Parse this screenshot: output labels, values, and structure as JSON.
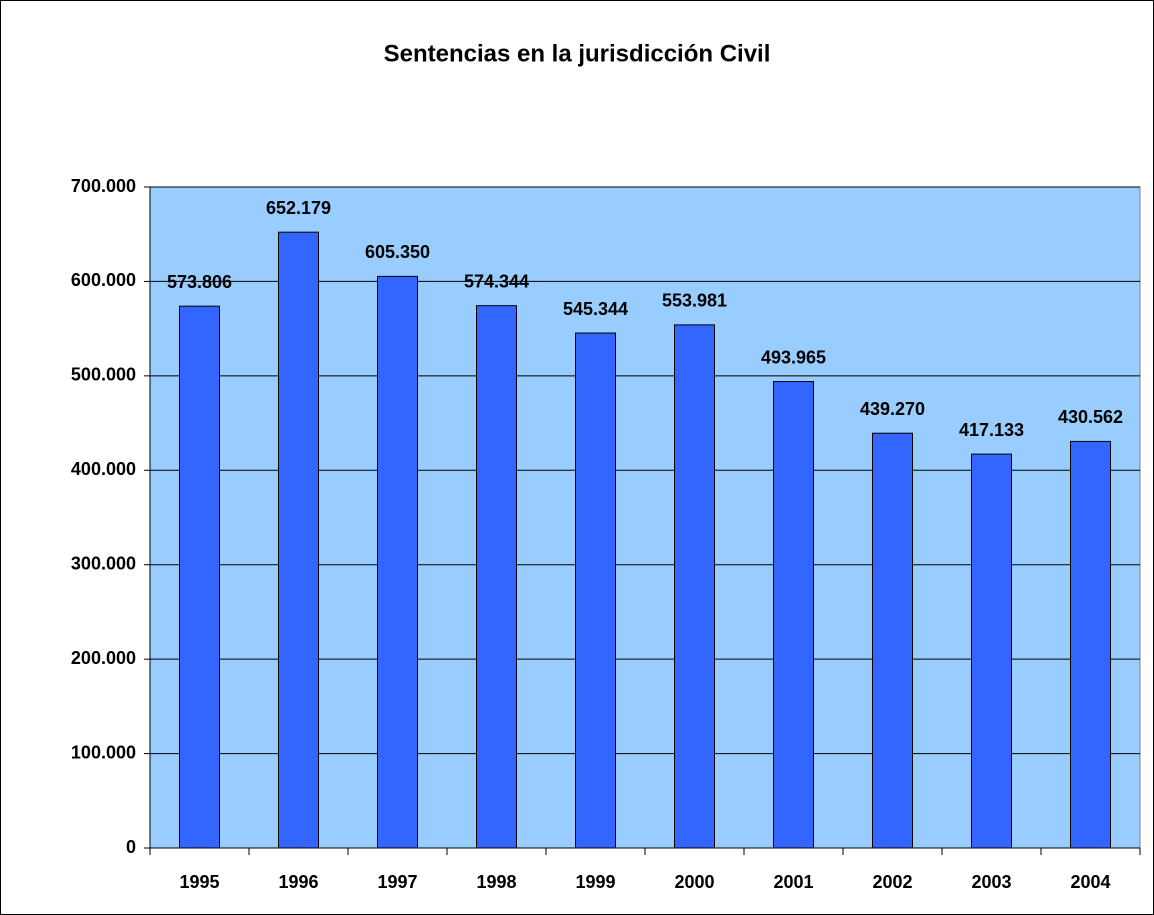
{
  "chart_data": {
    "type": "bar",
    "title": "Sentencias en la jurisdicción Civil",
    "categories": [
      "1995",
      "1996",
      "1997",
      "1998",
      "1999",
      "2000",
      "2001",
      "2002",
      "2003",
      "2004"
    ],
    "values": [
      573806,
      652179,
      605350,
      574344,
      545344,
      553981,
      493965,
      439270,
      417133,
      430562
    ],
    "value_labels": [
      "573.806",
      "652.179",
      "605.350",
      "574.344",
      "545.344",
      "553.981",
      "493.965",
      "439.270",
      "417.133",
      "430.562"
    ],
    "color": "#3366ff",
    "plot_background": "#99ccff",
    "ylim": [
      0,
      700000
    ],
    "yticks": [
      0,
      {
        "value": 100000,
        "label": "100.000"
      },
      {
        "value": 200000,
        "label": "200.000"
      },
      {
        "value": 300000,
        "label": "300.000"
      },
      {
        "value": 400000,
        "label": "400.000"
      },
      {
        "value": 500000,
        "label": "500.000"
      },
      {
        "value": 600000,
        "label": "600.000"
      },
      {
        "value": 700000,
        "label": "700.000"
      }
    ],
    "grid": true
  }
}
